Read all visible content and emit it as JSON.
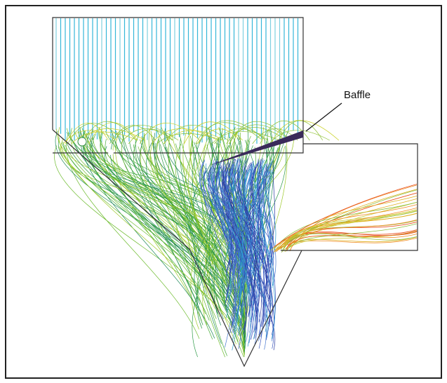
{
  "annotations": {
    "baffle": "Baffle"
  }
}
